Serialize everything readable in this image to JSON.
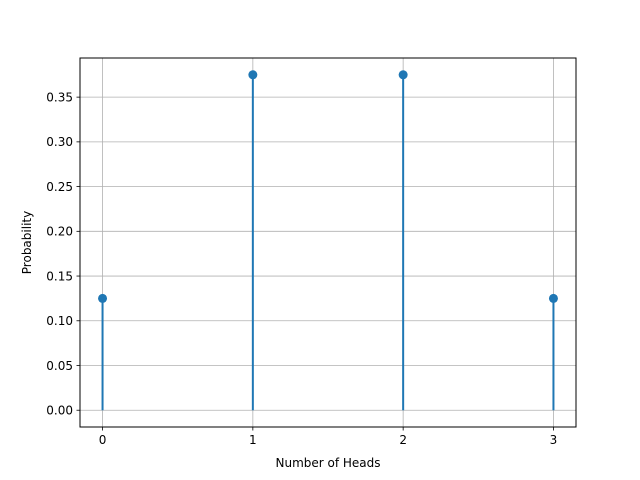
{
  "chart_data": {
    "type": "stem",
    "title": "",
    "xlabel": "Number of Heads",
    "ylabel": "Probability",
    "x": [
      0,
      1,
      2,
      3
    ],
    "values": [
      0.125,
      0.375,
      0.375,
      0.125
    ],
    "xlim": [
      -0.15,
      3.15
    ],
    "ylim": [
      -0.01875,
      0.39375
    ],
    "xticks": [
      0,
      1,
      2,
      3
    ],
    "xtick_labels": [
      "0",
      "1",
      "2",
      "3"
    ],
    "yticks": [
      0.0,
      0.05,
      0.1,
      0.15,
      0.2,
      0.25,
      0.3,
      0.35
    ],
    "ytick_labels": [
      "0.00",
      "0.05",
      "0.10",
      "0.15",
      "0.20",
      "0.25",
      "0.30",
      "0.35"
    ],
    "grid": true,
    "color": "#1f77b4"
  }
}
